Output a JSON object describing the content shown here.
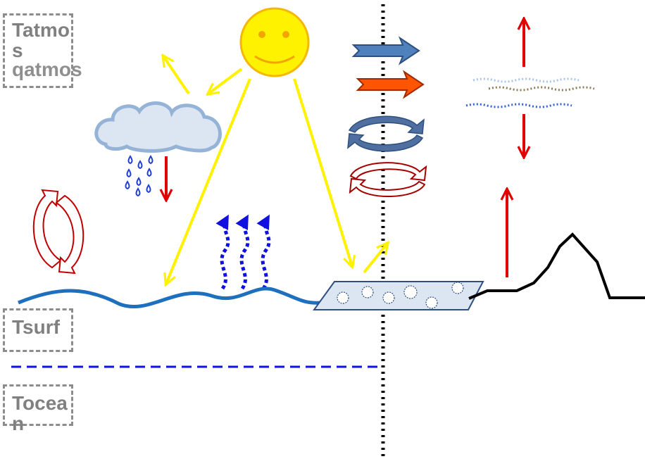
{
  "variables": {
    "tatmos": "Tatmos",
    "qatmos": "qatmos",
    "tsurf": "Tsurf",
    "tocean": "Tocean"
  },
  "colors": {
    "sun": "#FFF200",
    "sun_outline": "#F5B800",
    "sun_face": "#F2A500",
    "cloud_fill": "#DCE6F2",
    "cloud_outline": "#95B3D7",
    "rain": "#1F3FD0",
    "ocean": "#1F6FBF",
    "evaporation": "#1010E0",
    "red_arrows": "#E00000",
    "dark_red_cycle": "#A50000",
    "blue_cycle": "#4F6FA0",
    "ice": "#DCE6F2",
    "ice_outline": "#2F4F7F",
    "flux_blue": "#4F81BD",
    "flux_orange": "#FF5500",
    "divider": "#000000",
    "label_gray": "#808080"
  },
  "icons": [
    "sun-icon",
    "cloud-icon",
    "rain-drops-icon",
    "evaporation-arrows-icon",
    "sea-ice-icon",
    "mountain-icon",
    "cycle-arrows-icon",
    "flux-arrow-icon"
  ]
}
